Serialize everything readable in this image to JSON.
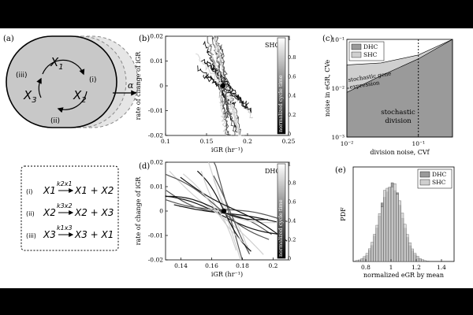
{
  "panel_labels": [
    "(a)",
    "(b)",
    "(c)",
    "(d)",
    "(e)"
  ],
  "cell_diagram": {
    "species": [
      "X",
      "X",
      "X"
    ],
    "subscripts": [
      "1",
      "2",
      "3"
    ],
    "steps": [
      "(i)",
      "(ii)",
      "(iii)"
    ],
    "alpha": "α"
  },
  "reactions": [
    {
      "label": "(i)",
      "rate": "k2x1",
      "lhs": "X1",
      "rhs": "X1 + X2"
    },
    {
      "label": "(ii)",
      "rate": "k3x2",
      "lhs": "X2",
      "rhs": "X2 + X3"
    },
    {
      "label": "(iii)",
      "rate": "k1x3",
      "lhs": "X3",
      "rhs": "X3 + X1"
    }
  ],
  "colors": {
    "dark_area": "#9a9a9a",
    "light_area": "#cfcfcf",
    "cell_fill": "#c8c8c8",
    "trajectory_dark": "#111111",
    "trajectory_light": "#d0d0d0"
  },
  "chart_data": [
    {
      "panel": "b",
      "type": "line",
      "tag": "SHC",
      "xlabel": "iGR (hr⁻¹)",
      "ylabel": "rate of change of iGR",
      "xlim": [
        0.1,
        0.25
      ],
      "ylim": [
        -0.02,
        0.02
      ],
      "xticks": [
        "0.1",
        "0.15",
        "0.2",
        "0.25"
      ],
      "yticks": [
        "0.02",
        "0.01",
        "0",
        "-0.01",
        "-0.02"
      ],
      "colorbar": {
        "label": "normalized cycle time",
        "ticks": [
          "1",
          "0.8",
          "0.6",
          "0.4",
          "0.2",
          "0"
        ]
      },
      "mean_point": [
        0.17,
        0.0
      ]
    },
    {
      "panel": "c",
      "type": "area",
      "xlabel": "division noise, CVf",
      "ylabel": "noise in eGR, CVe",
      "xscale": "log",
      "yscale": "log",
      "xlim": [
        0.01,
        0.3
      ],
      "ylim": [
        0.001,
        0.1
      ],
      "xticks": [
        "10⁻²",
        "10⁻¹"
      ],
      "yticks": [
        "10⁻¹",
        "10⁻²",
        "10⁻³"
      ],
      "legend": [
        "DHC",
        "SHC"
      ],
      "legend_position": "top-left",
      "annotations": [
        "stochastic gene",
        "expression",
        "stochastic",
        "division"
      ],
      "vline_x": 0.1,
      "series": [
        {
          "name": "stochastic division",
          "x": [
            0.01,
            0.03,
            0.1,
            0.3
          ],
          "y": [
            0.0082,
            0.018,
            0.04,
            0.1
          ]
        },
        {
          "name": "stochastic gene expression",
          "x": [
            0.01,
            0.03,
            0.1,
            0.3
          ],
          "y": [
            0.03,
            0.033,
            0.048,
            0.1
          ]
        }
      ]
    },
    {
      "panel": "d",
      "type": "line",
      "tag": "DHC",
      "xlabel": "iGR (hr⁻¹)",
      "ylabel": "rate of change of iGR",
      "xlim": [
        0.13,
        0.21
      ],
      "ylim": [
        -0.02,
        0.02
      ],
      "xticks": [
        "0.14",
        "0.16",
        "0.18",
        "0.2"
      ],
      "yticks": [
        "0.02",
        "0.01",
        "0",
        "-0.01",
        "-0.02"
      ],
      "colorbar": {
        "label": "normalized cycle time",
        "ticks": [
          "1",
          "0.8",
          "0.6",
          "0.4",
          "0.2",
          "0"
        ]
      },
      "mean_point": [
        0.168,
        0.0
      ]
    },
    {
      "panel": "e",
      "type": "bar",
      "xlabel": "normalized eGR by mean",
      "ylabel": "PDF",
      "xlim": [
        0.7,
        1.5
      ],
      "xticks": [
        "0.8",
        "1",
        "1.2",
        "1.4"
      ],
      "legend": [
        "DHC",
        "SHC"
      ],
      "legend_position": "top-right",
      "series": [
        {
          "name": "DHC",
          "mean": 1.0,
          "sd": 0.085
        },
        {
          "name": "SHC",
          "mean": 1.0,
          "sd": 0.09
        }
      ]
    }
  ]
}
